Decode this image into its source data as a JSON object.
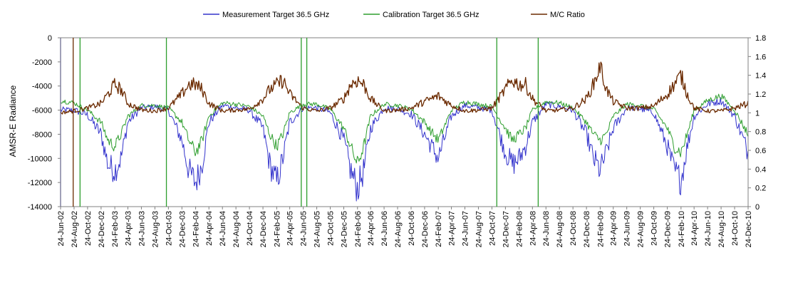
{
  "chart_data": {
    "type": "line",
    "ylabel": "AMSR-E Radiance",
    "legend_position": "top",
    "gridlines": "none",
    "y_left": {
      "min": -14000,
      "max": 0,
      "ticks": [
        "0",
        "-2000",
        "-4000",
        "-6000",
        "-8000",
        "-10000",
        "-12000",
        "-14000"
      ]
    },
    "y_right": {
      "min": 0,
      "max": 1.8,
      "ticks": [
        "1.8",
        "1.6",
        "1.4",
        "1.2",
        "1",
        "0.8",
        "0.6",
        "0.4",
        "0.2",
        "0"
      ]
    },
    "x_tick_labels": [
      "24-Jun-02",
      "24-Aug-02",
      "24-Oct-02",
      "24-Dec-02",
      "24-Feb-03",
      "24-Apr-03",
      "24-Jun-03",
      "24-Aug-03",
      "24-Oct-03",
      "24-Dec-03",
      "24-Feb-04",
      "24-Apr-04",
      "24-Jun-04",
      "24-Aug-04",
      "24-Oct-04",
      "24-Dec-04",
      "24-Feb-05",
      "24-Apr-05",
      "24-Jun-05",
      "24-Aug-05",
      "24-Oct-05",
      "24-Dec-05",
      "24-Feb-06",
      "24-Apr-06",
      "24-Jun-06",
      "24-Aug-06",
      "24-Oct-06",
      "24-Dec-06",
      "24-Feb-07",
      "24-Apr-07",
      "24-Jun-07",
      "24-Aug-07",
      "24-Oct-07",
      "24-Dec-07",
      "24-Feb-08",
      "24-Apr-08",
      "24-Jun-08",
      "24-Aug-08",
      "24-Oct-08",
      "24-Dec-08",
      "24-Feb-09",
      "24-Apr-09",
      "24-Jun-09",
      "24-Aug-09",
      "24-Oct-09",
      "24-Dec-09",
      "24-Feb-10",
      "24-Apr-10",
      "24-Jun-10",
      "24-Aug-10",
      "24-Oct-10",
      "24-Dec-10"
    ],
    "series": [
      {
        "name": "Measurement Target 36.5 GHz",
        "axis": "left",
        "color": "#3333cc",
        "x": [
          "2002-06-24",
          "2002-08-24",
          "2002-10-24",
          "2002-12-24",
          "2003-01-24",
          "2003-02-24",
          "2003-03-24",
          "2003-04-24",
          "2003-06-24",
          "2003-08-24",
          "2003-10-24",
          "2003-12-24",
          "2004-01-24",
          "2004-02-24",
          "2004-03-24",
          "2004-04-24",
          "2004-06-24",
          "2004-08-24",
          "2004-10-24",
          "2004-12-24",
          "2005-01-24",
          "2005-02-24",
          "2005-03-24",
          "2005-04-24",
          "2005-06-24",
          "2005-08-24",
          "2005-10-24",
          "2005-12-24",
          "2006-01-24",
          "2006-02-24",
          "2006-03-24",
          "2006-04-24",
          "2006-06-24",
          "2006-08-24",
          "2006-10-24",
          "2006-12-24",
          "2007-01-24",
          "2007-02-24",
          "2007-04-24",
          "2007-06-24",
          "2007-08-24",
          "2007-10-24",
          "2007-12-24",
          "2008-01-24",
          "2008-02-24",
          "2008-03-24",
          "2008-04-24",
          "2008-06-24",
          "2008-08-24",
          "2008-10-24",
          "2008-12-24",
          "2009-01-24",
          "2009-02-24",
          "2009-03-24",
          "2009-04-24",
          "2009-06-24",
          "2009-08-24",
          "2009-10-24",
          "2009-12-24",
          "2010-01-24",
          "2010-02-24",
          "2010-03-24",
          "2010-04-24",
          "2010-06-24",
          "2010-08-24",
          "2010-10-24",
          "2010-12-24"
        ],
        "values": [
          -6000,
          -6000,
          -6400,
          -8000,
          -10500,
          -11000,
          -10000,
          -7000,
          -5800,
          -5700,
          -6000,
          -8500,
          -11000,
          -12000,
          -10500,
          -7000,
          -5600,
          -5800,
          -6000,
          -7500,
          -10500,
          -12000,
          -10000,
          -7000,
          -5800,
          -5800,
          -6200,
          -8500,
          -11000,
          -12500,
          -11000,
          -7500,
          -5800,
          -5900,
          -6300,
          -8000,
          -9000,
          -10000,
          -6500,
          -5600,
          -5800,
          -6000,
          -9500,
          -10500,
          -10000,
          -9000,
          -7000,
          -5500,
          -5700,
          -6000,
          -8000,
          -10000,
          -11000,
          -9500,
          -7500,
          -5800,
          -5900,
          -6200,
          -9000,
          -11000,
          -11800,
          -9000,
          -6500,
          -5500,
          -5200,
          -6500,
          -9500
        ]
      },
      {
        "name": "Calibration Target 36.5 GHz",
        "axis": "left",
        "color": "#2e9e2e",
        "x": [
          "2002-06-24",
          "2002-08-24",
          "2002-10-24",
          "2002-12-24",
          "2003-01-24",
          "2003-02-24",
          "2003-03-24",
          "2003-04-24",
          "2003-06-24",
          "2003-08-24",
          "2003-10-24",
          "2003-12-24",
          "2004-01-24",
          "2004-02-24",
          "2004-03-24",
          "2004-04-24",
          "2004-06-24",
          "2004-08-24",
          "2004-10-24",
          "2004-12-24",
          "2005-01-24",
          "2005-02-24",
          "2005-03-24",
          "2005-04-24",
          "2005-06-24",
          "2005-08-24",
          "2005-10-24",
          "2005-12-24",
          "2006-01-24",
          "2006-02-24",
          "2006-03-24",
          "2006-04-24",
          "2006-06-24",
          "2006-08-24",
          "2006-10-24",
          "2006-12-24",
          "2007-01-24",
          "2007-02-24",
          "2007-04-24",
          "2007-06-24",
          "2007-08-24",
          "2007-10-24",
          "2007-12-24",
          "2008-01-24",
          "2008-02-24",
          "2008-03-24",
          "2008-04-24",
          "2008-06-24",
          "2008-08-24",
          "2008-10-24",
          "2008-12-24",
          "2009-01-24",
          "2009-02-24",
          "2009-03-24",
          "2009-04-24",
          "2009-06-24",
          "2009-08-24",
          "2009-10-24",
          "2009-12-24",
          "2010-01-24",
          "2010-02-24",
          "2010-03-24",
          "2010-04-24",
          "2010-06-24",
          "2010-08-24",
          "2010-10-24",
          "2010-12-24"
        ],
        "values": [
          -5200,
          -5400,
          -6000,
          -7000,
          -8500,
          -9000,
          -8000,
          -6500,
          -5600,
          -5600,
          -5800,
          -7000,
          -8500,
          -9500,
          -8500,
          -6500,
          -5400,
          -5500,
          -5700,
          -6500,
          -8000,
          -9000,
          -8000,
          -6200,
          -5500,
          -5500,
          -5900,
          -7500,
          -9000,
          -10500,
          -9000,
          -6500,
          -5500,
          -5600,
          -5900,
          -7000,
          -7800,
          -8500,
          -6000,
          -5300,
          -5500,
          -5700,
          -7500,
          -8500,
          -8000,
          -7500,
          -6000,
          -5300,
          -5400,
          -5800,
          -7000,
          -8000,
          -8500,
          -8000,
          -6500,
          -5500,
          -5600,
          -5900,
          -7500,
          -9000,
          -9500,
          -8000,
          -6000,
          -5200,
          -4800,
          -6000,
          -8000
        ]
      },
      {
        "name": "M/C Ratio",
        "axis": "right",
        "color": "#6b2a00",
        "x": [
          "2002-06-24",
          "2002-08-24",
          "2002-10-24",
          "2002-12-24",
          "2003-01-24",
          "2003-02-24",
          "2003-03-24",
          "2003-04-24",
          "2003-06-24",
          "2003-08-24",
          "2003-10-24",
          "2003-12-24",
          "2004-01-24",
          "2004-02-24",
          "2004-03-24",
          "2004-04-24",
          "2004-06-24",
          "2004-08-24",
          "2004-10-24",
          "2004-12-24",
          "2005-01-24",
          "2005-02-24",
          "2005-03-24",
          "2005-04-24",
          "2005-06-24",
          "2005-08-24",
          "2005-10-24",
          "2005-12-24",
          "2006-01-24",
          "2006-02-24",
          "2006-03-24",
          "2006-04-24",
          "2006-06-24",
          "2006-08-24",
          "2006-10-24",
          "2006-12-24",
          "2007-01-24",
          "2007-02-24",
          "2007-04-24",
          "2007-06-24",
          "2007-08-24",
          "2007-10-24",
          "2007-12-24",
          "2008-01-24",
          "2008-02-24",
          "2008-03-24",
          "2008-04-24",
          "2008-06-24",
          "2008-08-24",
          "2008-10-24",
          "2008-12-24",
          "2009-01-24",
          "2009-02-24",
          "2009-03-24",
          "2009-04-24",
          "2009-06-24",
          "2009-08-24",
          "2009-10-24",
          "2009-12-24",
          "2010-01-24",
          "2010-02-24",
          "2010-03-24",
          "2010-04-24",
          "2010-06-24",
          "2010-08-24",
          "2010-10-24",
          "2010-12-24"
        ],
        "values": [
          1.0,
          1.02,
          1.05,
          1.1,
          1.2,
          1.3,
          1.25,
          1.1,
          1.03,
          1.02,
          1.05,
          1.2,
          1.3,
          1.3,
          1.25,
          1.1,
          1.02,
          1.03,
          1.04,
          1.15,
          1.25,
          1.3,
          1.35,
          1.2,
          1.05,
          1.02,
          1.05,
          1.15,
          1.3,
          1.35,
          1.3,
          1.15,
          1.02,
          1.03,
          1.05,
          1.12,
          1.15,
          1.18,
          1.08,
          1.02,
          1.03,
          1.05,
          1.25,
          1.35,
          1.3,
          1.3,
          1.15,
          1.02,
          1.03,
          1.05,
          1.15,
          1.3,
          1.5,
          1.25,
          1.12,
          1.05,
          1.05,
          1.07,
          1.2,
          1.3,
          1.4,
          1.2,
          1.05,
          1.02,
          1.02,
          1.05,
          1.1
        ]
      }
    ],
    "spikes": [
      {
        "x": "2002-06-24",
        "series": "Measurement Target 36.5 GHz"
      },
      {
        "x": "2002-08-20",
        "series": "M/C Ratio"
      },
      {
        "x": "2002-09-20",
        "series": "Calibration Target 36.5 GHz"
      },
      {
        "x": "2003-10-15",
        "series": "Calibration Target 36.5 GHz"
      },
      {
        "x": "2005-06-15",
        "series": "Calibration Target 36.5 GHz"
      },
      {
        "x": "2005-07-10",
        "series": "Calibration Target 36.5 GHz"
      },
      {
        "x": "2007-11-15",
        "series": "Calibration Target 36.5 GHz"
      },
      {
        "x": "2008-05-20",
        "series": "Calibration Target 36.5 GHz"
      }
    ]
  }
}
